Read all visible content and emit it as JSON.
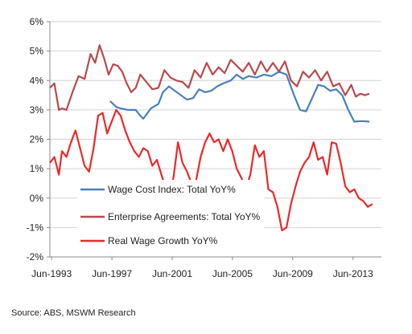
{
  "source_note": "Source: ABS, MSWM Research",
  "chart_data": {
    "type": "line",
    "title": "",
    "xlabel": "",
    "ylabel": "",
    "x_ticks": [
      "Jun-1993",
      "Jun-1997",
      "Jun-2001",
      "Jun-2005",
      "Jun-2009",
      "Jun-2013"
    ],
    "y_ticks": [
      "6%",
      "5%",
      "4%",
      "3%",
      "2%",
      "1%",
      "0%",
      "-1%",
      "-2%"
    ],
    "ylim": [
      -2,
      6
    ],
    "xlim": [
      1993.3,
      2015.3
    ],
    "grid": true,
    "legend_position": "left-lower-middle",
    "series": [
      {
        "name": "Wage Cost Index: Total YoY%",
        "color": "#4a7fc0",
        "points": [
          [
            1997.3,
            3.3
          ],
          [
            1997.7,
            3.1
          ],
          [
            1998.0,
            3.05
          ],
          [
            1998.5,
            3.0
          ],
          [
            1999.0,
            3.0
          ],
          [
            1999.3,
            2.8
          ],
          [
            1999.5,
            2.7
          ],
          [
            2000.0,
            3.05
          ],
          [
            2000.5,
            3.2
          ],
          [
            2000.8,
            3.6
          ],
          [
            2001.2,
            3.8
          ],
          [
            2001.6,
            3.65
          ],
          [
            2002.0,
            3.5
          ],
          [
            2002.4,
            3.35
          ],
          [
            2002.8,
            3.4
          ],
          [
            2003.2,
            3.7
          ],
          [
            2003.6,
            3.6
          ],
          [
            2004.0,
            3.65
          ],
          [
            2004.4,
            3.8
          ],
          [
            2004.8,
            3.9
          ],
          [
            2005.3,
            4.0
          ],
          [
            2005.7,
            4.2
          ],
          [
            2006.1,
            4.05
          ],
          [
            2006.5,
            4.15
          ],
          [
            2007.0,
            4.1
          ],
          [
            2007.5,
            4.2
          ],
          [
            2008.0,
            4.15
          ],
          [
            2008.5,
            4.3
          ],
          [
            2009.0,
            4.2
          ],
          [
            2009.5,
            3.5
          ],
          [
            2009.9,
            3.0
          ],
          [
            2010.3,
            2.95
          ],
          [
            2010.7,
            3.4
          ],
          [
            2011.1,
            3.85
          ],
          [
            2011.5,
            3.8
          ],
          [
            2011.9,
            3.65
          ],
          [
            2012.3,
            3.7
          ],
          [
            2012.7,
            3.5
          ],
          [
            2013.1,
            3.0
          ],
          [
            2013.5,
            2.6
          ],
          [
            2014.0,
            2.62
          ],
          [
            2014.5,
            2.6
          ]
        ]
      },
      {
        "name": "Enterprise Agreements: Total YoY%",
        "color": "#b84a4e",
        "points": [
          [
            1993.3,
            3.75
          ],
          [
            1993.6,
            3.9
          ],
          [
            1993.9,
            3.0
          ],
          [
            1994.1,
            3.05
          ],
          [
            1994.4,
            3.0
          ],
          [
            1994.8,
            3.6
          ],
          [
            1995.2,
            4.15
          ],
          [
            1995.6,
            4.05
          ],
          [
            1996.0,
            4.9
          ],
          [
            1996.3,
            4.6
          ],
          [
            1996.6,
            5.2
          ],
          [
            1996.9,
            4.75
          ],
          [
            1997.2,
            4.2
          ],
          [
            1997.5,
            4.55
          ],
          [
            1997.8,
            4.5
          ],
          [
            1998.1,
            4.3
          ],
          [
            1998.4,
            3.9
          ],
          [
            1998.7,
            3.6
          ],
          [
            1999.0,
            3.75
          ],
          [
            1999.3,
            4.2
          ],
          [
            1999.7,
            3.95
          ],
          [
            2000.1,
            3.7
          ],
          [
            2000.5,
            3.75
          ],
          [
            2000.9,
            4.35
          ],
          [
            2001.3,
            4.1
          ],
          [
            2001.7,
            4.0
          ],
          [
            2002.1,
            3.95
          ],
          [
            2002.5,
            3.75
          ],
          [
            2002.9,
            4.35
          ],
          [
            2003.3,
            4.1
          ],
          [
            2003.7,
            4.6
          ],
          [
            2004.1,
            4.2
          ],
          [
            2004.5,
            4.45
          ],
          [
            2004.9,
            4.25
          ],
          [
            2005.3,
            4.7
          ],
          [
            2005.7,
            4.5
          ],
          [
            2006.1,
            4.3
          ],
          [
            2006.5,
            4.6
          ],
          [
            2006.9,
            4.2
          ],
          [
            2007.3,
            4.65
          ],
          [
            2007.7,
            4.3
          ],
          [
            2008.1,
            4.6
          ],
          [
            2008.5,
            4.3
          ],
          [
            2008.9,
            4.65
          ],
          [
            2009.3,
            4.0
          ],
          [
            2009.7,
            3.8
          ],
          [
            2010.1,
            4.3
          ],
          [
            2010.5,
            4.1
          ],
          [
            2010.9,
            4.35
          ],
          [
            2011.3,
            4.0
          ],
          [
            2011.7,
            4.3
          ],
          [
            2012.1,
            3.8
          ],
          [
            2012.5,
            3.9
          ],
          [
            2012.9,
            3.5
          ],
          [
            2013.3,
            3.85
          ],
          [
            2013.6,
            3.45
          ],
          [
            2013.9,
            3.55
          ],
          [
            2014.2,
            3.5
          ],
          [
            2014.5,
            3.55
          ]
        ]
      },
      {
        "name": "Real Wage Growth YoY%",
        "color": "#e82a2a",
        "points": [
          [
            1993.3,
            1.2
          ],
          [
            1993.6,
            1.4
          ],
          [
            1993.9,
            0.8
          ],
          [
            1994.1,
            1.6
          ],
          [
            1994.4,
            1.4
          ],
          [
            1994.7,
            1.9
          ],
          [
            1995.0,
            2.3
          ],
          [
            1995.3,
            1.7
          ],
          [
            1995.6,
            1.1
          ],
          [
            1995.9,
            0.9
          ],
          [
            1996.2,
            1.7
          ],
          [
            1996.5,
            2.8
          ],
          [
            1996.8,
            2.9
          ],
          [
            1997.1,
            2.2
          ],
          [
            1997.4,
            2.6
          ],
          [
            1997.7,
            3.0
          ],
          [
            1998.0,
            2.8
          ],
          [
            1998.3,
            2.3
          ],
          [
            1998.6,
            1.9
          ],
          [
            1998.9,
            1.6
          ],
          [
            1999.2,
            1.4
          ],
          [
            1999.5,
            1.7
          ],
          [
            1999.8,
            1.6
          ],
          [
            2000.1,
            1.1
          ],
          [
            2000.4,
            1.3
          ],
          [
            2000.7,
            0.8
          ],
          [
            2001.0,
            0.3
          ],
          [
            2001.2,
            -0.15
          ],
          [
            2001.5,
            0.7
          ],
          [
            2001.8,
            1.9
          ],
          [
            2002.1,
            1.2
          ],
          [
            2002.4,
            0.9
          ],
          [
            2002.7,
            0.5
          ],
          [
            2003.0,
            0.6
          ],
          [
            2003.3,
            1.4
          ],
          [
            2003.6,
            1.9
          ],
          [
            2003.9,
            2.2
          ],
          [
            2004.2,
            1.9
          ],
          [
            2004.5,
            2.0
          ],
          [
            2004.8,
            1.6
          ],
          [
            2005.1,
            2.0
          ],
          [
            2005.4,
            1.6
          ],
          [
            2005.7,
            1.0
          ],
          [
            2006.0,
            0.7
          ],
          [
            2006.3,
            0.3
          ],
          [
            2006.6,
            0.8
          ],
          [
            2006.9,
            1.8
          ],
          [
            2007.2,
            1.4
          ],
          [
            2007.5,
            1.6
          ],
          [
            2007.8,
            0.3
          ],
          [
            2008.1,
            0.2
          ],
          [
            2008.4,
            -0.3
          ],
          [
            2008.7,
            -1.1
          ],
          [
            2009.0,
            -1.0
          ],
          [
            2009.3,
            -0.2
          ],
          [
            2009.6,
            0.4
          ],
          [
            2009.9,
            0.9
          ],
          [
            2010.2,
            1.2
          ],
          [
            2010.5,
            1.4
          ],
          [
            2010.8,
            1.9
          ],
          [
            2011.1,
            1.3
          ],
          [
            2011.4,
            1.4
          ],
          [
            2011.7,
            0.8
          ],
          [
            2012.0,
            1.9
          ],
          [
            2012.3,
            1.85
          ],
          [
            2012.6,
            1.2
          ],
          [
            2012.9,
            0.4
          ],
          [
            2013.2,
            0.2
          ],
          [
            2013.5,
            0.3
          ],
          [
            2013.8,
            0.0
          ],
          [
            2014.1,
            -0.1
          ],
          [
            2014.4,
            -0.3
          ],
          [
            2014.7,
            -0.2
          ]
        ]
      }
    ]
  }
}
